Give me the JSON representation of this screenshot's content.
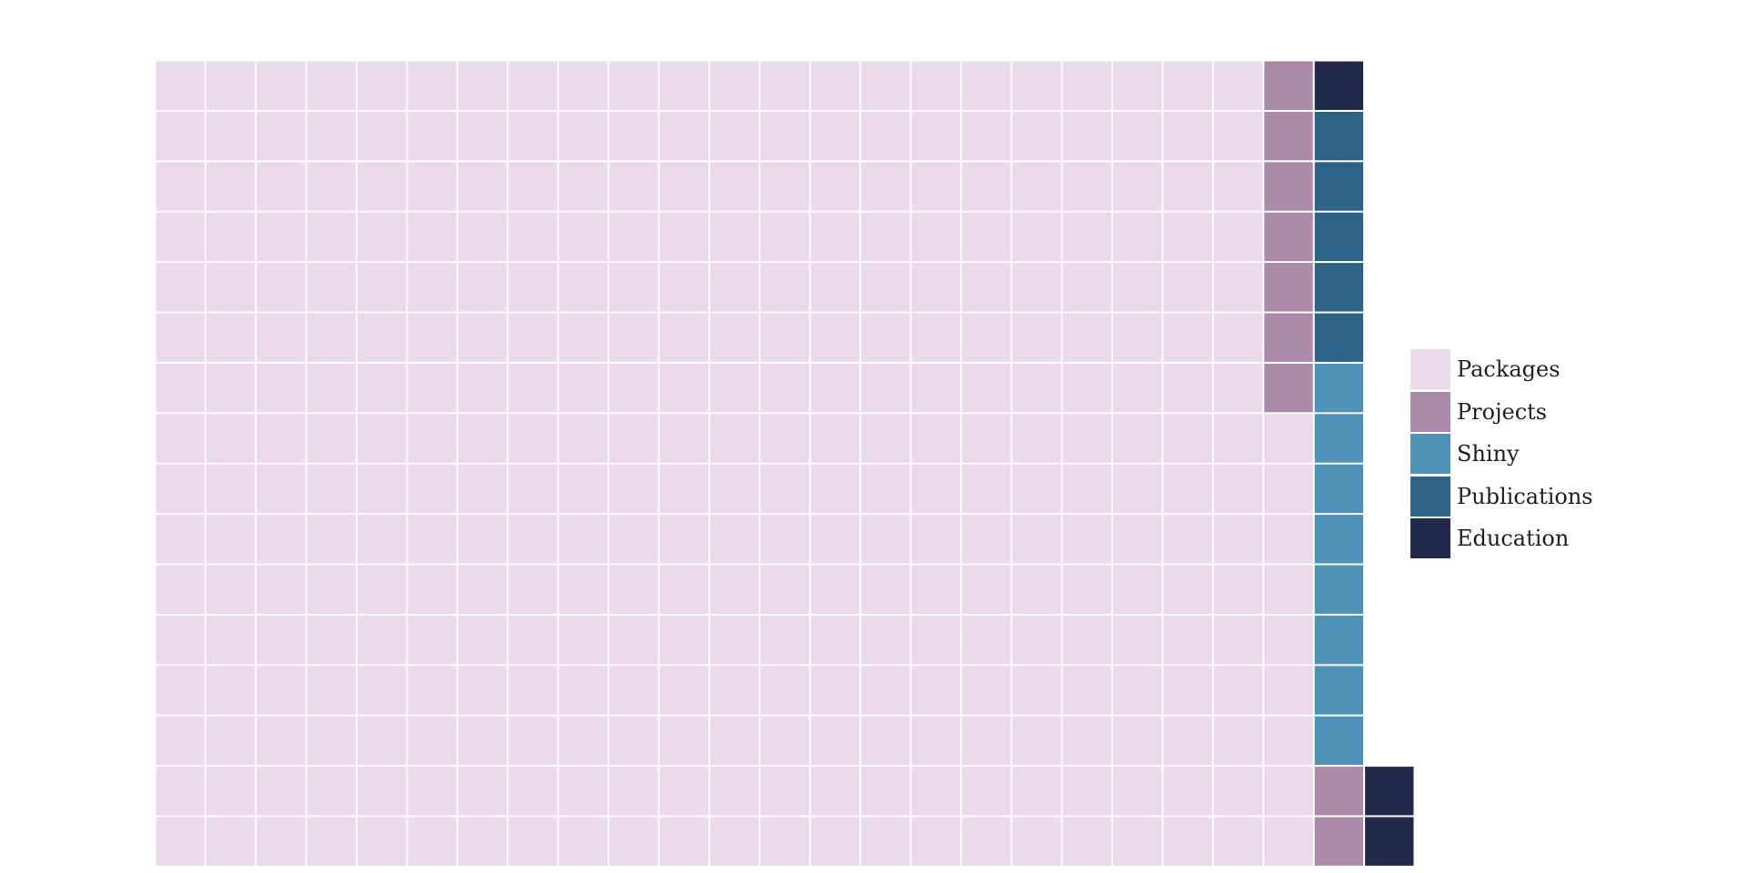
{
  "chart_data": {
    "type": "waffle",
    "title": "",
    "xlabel": "",
    "ylabel": "",
    "grid": {
      "columns": 24,
      "rows": 16
    },
    "fill_order": "column-major, bottom-to-top",
    "series": [
      {
        "name": "Packages",
        "value": 361,
        "color": "#EBDAEA"
      },
      {
        "name": "Projects",
        "value": 9,
        "color": "#AC8AAA"
      },
      {
        "name": "Shiny",
        "value": 8,
        "color": "#4F93B8"
      },
      {
        "name": "Publications",
        "value": 5,
        "color": "#2D6387"
      },
      {
        "name": "Education",
        "value": 3,
        "color": "#212A4B"
      }
    ],
    "legend": {
      "position": "right"
    }
  }
}
